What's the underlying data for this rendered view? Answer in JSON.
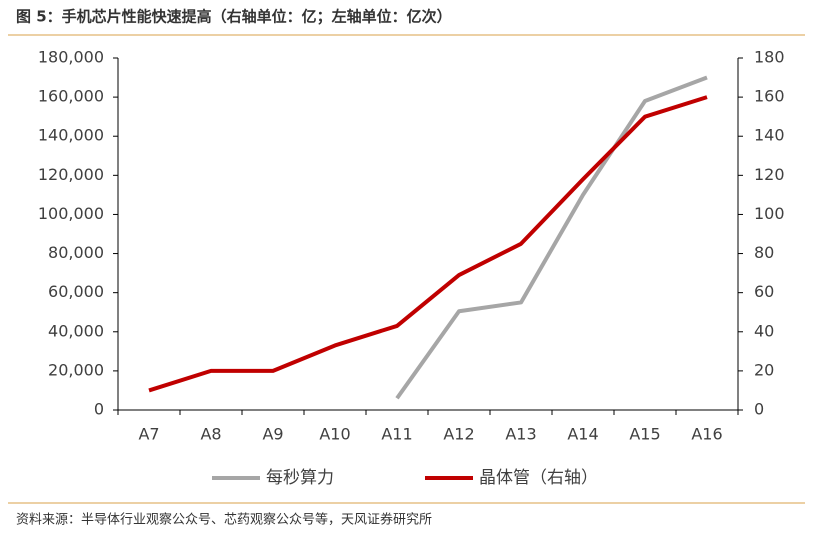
{
  "chart_data": {
    "type": "line",
    "title": "图 5：手机芯片性能快速提高（右轴单位：亿；左轴单位：亿次）",
    "source": "资料来源：半导体行业观察公众号、芯药观察公众号等，天风证券研究所",
    "categories": [
      "A7",
      "A8",
      "A9",
      "A10",
      "A11",
      "A12",
      "A13",
      "A14",
      "A15",
      "A16"
    ],
    "series": [
      {
        "name": "每秒算力",
        "color": "#a6a6a6",
        "values": [
          null,
          null,
          null,
          null,
          6000,
          50500,
          55000,
          110000,
          158000,
          170000
        ]
      },
      {
        "name": "晶体管（右轴）",
        "color": "#c00000",
        "axis": "y2",
        "values": [
          10,
          20,
          20,
          33,
          43,
          69,
          85,
          118,
          150,
          160
        ]
      }
    ],
    "ylim": [
      0,
      180000
    ],
    "yticks": [
      0,
      {
        "value": 20000,
        "label": "20,000"
      },
      {
        "value": 40000,
        "label": "40,000"
      },
      {
        "value": 60000,
        "label": "60,000"
      },
      {
        "value": 80000,
        "label": "80,000"
      },
      {
        "value": 100000,
        "label": "100,000"
      },
      {
        "value": 120000,
        "label": "120,000"
      },
      {
        "value": 140000,
        "label": "140,000"
      },
      {
        "value": 160000,
        "label": "160,000"
      },
      {
        "value": 180000,
        "label": "180,000"
      }
    ],
    "y2lim": [
      0,
      180
    ],
    "y2ticks": [
      0,
      20,
      40,
      60,
      80,
      100,
      120,
      140,
      160,
      180
    ]
  }
}
